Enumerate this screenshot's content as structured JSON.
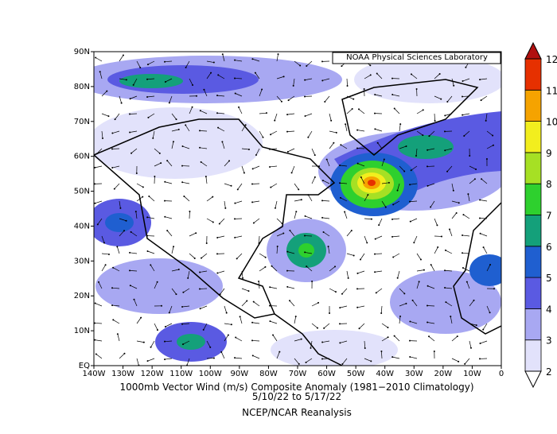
{
  "chart_data": {
    "type": "contour-map",
    "title": "1000mb Vector Wind (m/s) Composite Anomaly (1981−2010 Climatology)",
    "subtitle": "5/10/22  to 5/17/22",
    "source": "NCEP/NCAR Reanalysis",
    "credit": "NOAA Physical Sciences Laboratory",
    "xlim": [
      -140,
      0
    ],
    "ylim": [
      0,
      90
    ],
    "xticks": [
      {
        "value": -140,
        "label": "140W"
      },
      {
        "value": -130,
        "label": "130W"
      },
      {
        "value": -120,
        "label": "120W"
      },
      {
        "value": -110,
        "label": "110W"
      },
      {
        "value": -100,
        "label": "100W"
      },
      {
        "value": -90,
        "label": "90W"
      },
      {
        "value": -80,
        "label": "80W"
      },
      {
        "value": -70,
        "label": "70W"
      },
      {
        "value": -60,
        "label": "60W"
      },
      {
        "value": -50,
        "label": "50W"
      },
      {
        "value": -40,
        "label": "40W"
      },
      {
        "value": -30,
        "label": "30W"
      },
      {
        "value": -20,
        "label": "20W"
      },
      {
        "value": -10,
        "label": "10W"
      },
      0
    ],
    "yticks": [
      {
        "value": 0,
        "label": "EQ"
      },
      {
        "value": 10,
        "label": "10N"
      },
      {
        "value": 20,
        "label": "20N"
      },
      {
        "value": 30,
        "label": "30N"
      },
      {
        "value": 40,
        "label": "40N"
      },
      {
        "value": 50,
        "label": "50N"
      },
      {
        "value": 60,
        "label": "60N"
      },
      {
        "value": 70,
        "label": "70N"
      },
      {
        "value": 80,
        "label": "80N"
      },
      {
        "value": 90,
        "label": "90N"
      }
    ],
    "levels": [
      2,
      3,
      4,
      5,
      6,
      7,
      8,
      9,
      10,
      11,
      12
    ],
    "colors": [
      "#e2e2fb",
      "#a8a8f2",
      "#5a5ae2",
      "#1f5fd0",
      "#14a07a",
      "#2ed02e",
      "#a6e024",
      "#f2ee1e",
      "#f5a300",
      "#e63000"
    ],
    "over_color": "#b01010",
    "under_color": "#ffffff"
  }
}
